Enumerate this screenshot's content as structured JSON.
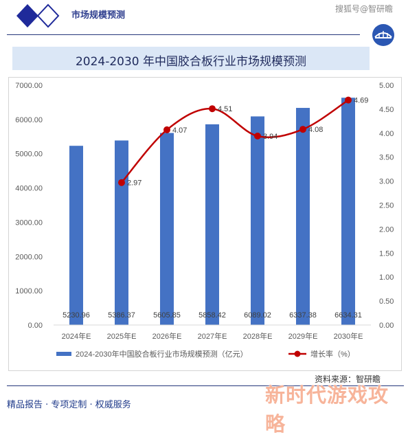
{
  "header": {
    "title": "市场规模预测",
    "watermark": "搜狐号@智研瞻"
  },
  "source": "资料来源：智研瞻",
  "footer": {
    "left_text": "精品报告 · 专项定制 · 权威服务",
    "overlay_text": "新时代游戏攻略"
  },
  "colors": {
    "bar": "#4472c4",
    "line": "#c00000",
    "brand_dark": "#24357a",
    "title_band": "#dbe7f6"
  },
  "icons": {
    "logo_left": "diamond-logo-icon",
    "logo_right": "bridge-emblem-icon"
  },
  "chart_data": {
    "type": "bar",
    "title": "2024-2030 年中国胶合板行业市场规模预测",
    "categories": [
      "2024年E",
      "2025年E",
      "2026年E",
      "2027年E",
      "2028年E",
      "2029年E",
      "2030年E"
    ],
    "series": [
      {
        "name": "2024-2030年中国胶合板行业市场规模预测（亿元）",
        "type": "bar",
        "axis": "left",
        "values": [
          5230.96,
          5386.37,
          5605.85,
          5858.42,
          6089.02,
          6337.38,
          6634.31
        ],
        "labels": [
          "5230.96",
          "5386.37",
          "5605.85",
          "5858.42",
          "6089.02",
          "6337.38",
          "6634.31"
        ]
      },
      {
        "name": "增长率（%）",
        "type": "line",
        "axis": "right",
        "values": [
          null,
          2.97,
          4.07,
          4.51,
          3.94,
          4.08,
          4.69
        ],
        "labels": [
          "",
          "2.97",
          "4.07",
          "4.51",
          "3.94",
          "4.08",
          "4.69"
        ]
      }
    ],
    "y_left": {
      "min": 0,
      "max": 7000,
      "ticks": [
        "0.00",
        "1000.00",
        "2000.00",
        "3000.00",
        "4000.00",
        "5000.00",
        "6000.00",
        "7000.00"
      ]
    },
    "y_right": {
      "min": 0,
      "max": 5,
      "ticks": [
        "0.00",
        "0.50",
        "1.00",
        "1.50",
        "2.00",
        "2.50",
        "3.00",
        "3.50",
        "4.00",
        "4.50",
        "5.00"
      ]
    },
    "legend_position": "bottom",
    "grid": false
  }
}
